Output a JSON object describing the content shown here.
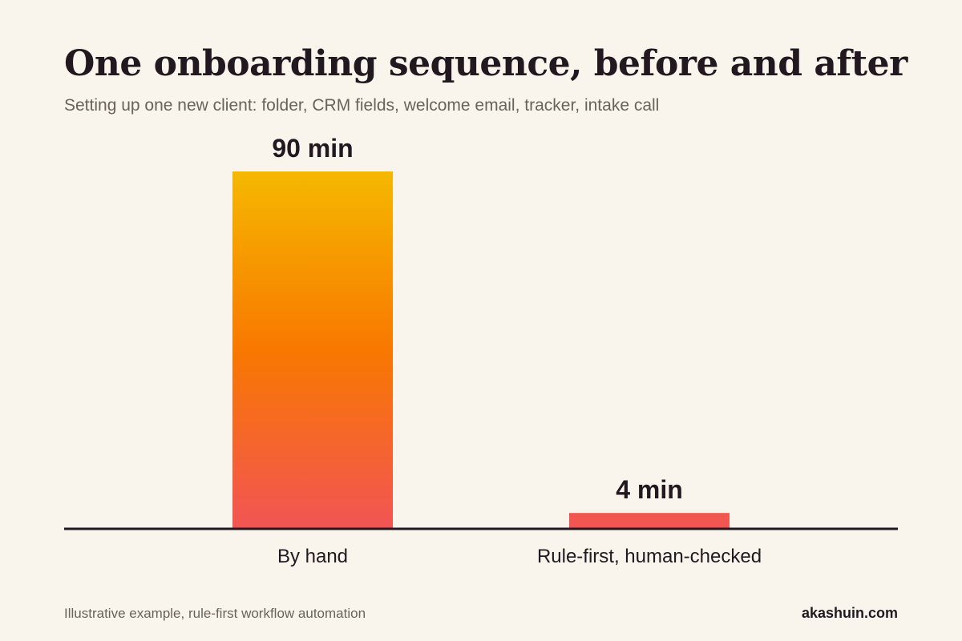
{
  "header": {
    "title": "One onboarding sequence, before and after",
    "subtitle": "Setting up one new client: folder, CRM fields, welcome email, tracker, intake call"
  },
  "footer": {
    "note": "Illustrative example, rule-first workflow automation",
    "site": "akashuin.com"
  },
  "colors": {
    "background": "#f9f4ec",
    "text": "#221820",
    "muted_text": "#6a625c",
    "bar_gradient_top": "#f5b800",
    "bar_gradient_mid": "#f87800",
    "bar_gradient_bottom": "#f25455",
    "baseline": "#221820"
  },
  "chart_data": {
    "type": "bar",
    "unit": "min",
    "categories": [
      "By hand",
      "Rule-first, human-checked"
    ],
    "values": [
      90,
      4
    ],
    "value_labels": [
      "90 min",
      "4 min"
    ],
    "ylim": [
      0,
      90
    ],
    "grid": false,
    "legend": "none"
  }
}
